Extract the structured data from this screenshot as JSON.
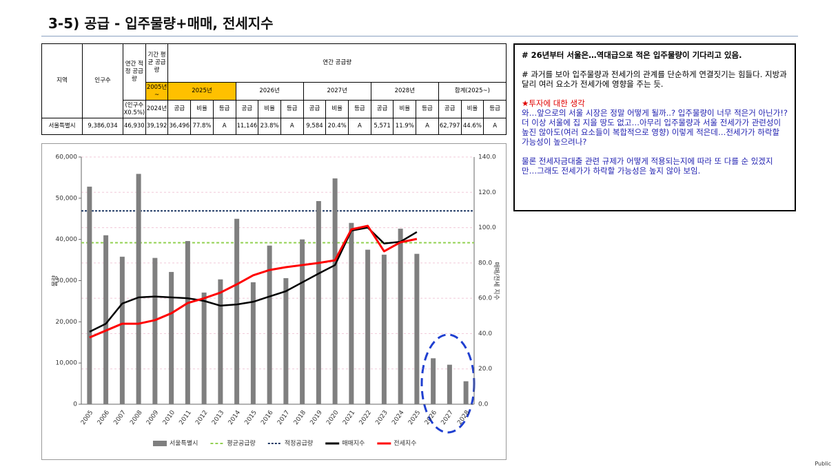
{
  "title": "3-5) 공급 - 입주물량+매매, 전세지수",
  "table": {
    "header": [
      [
        "지역",
        "인구수",
        "연간 적정 공급량",
        "기간 평균 공급량",
        "연간 공급량"
      ],
      [
        "2005년~",
        "2025년",
        "2026년",
        "2027년",
        "2028년",
        "합계(2025~)"
      ],
      [
        "(인구수 X0.5%)",
        "2024년",
        "공급",
        "비율",
        "등급",
        "공급",
        "비율",
        "등급",
        "공급",
        "비율",
        "등급",
        "공급",
        "비율",
        "등급",
        "공급",
        "비율",
        "등급"
      ]
    ],
    "rows": [
      [
        "서울특별시",
        "9,386,034",
        "46,930",
        "39,192",
        "36,496",
        "77.8%",
        "A",
        "11,146",
        "23.8%",
        "A",
        "9,584",
        "20.4%",
        "A",
        "5,571",
        "11.9%",
        "A",
        "62,797",
        "44.6%",
        "A"
      ]
    ]
  },
  "chart_data": {
    "type": "bar_line",
    "categories": [
      "2005",
      "2006",
      "2007",
      "2008",
      "2009",
      "2010",
      "2011",
      "2012",
      "2013",
      "2014",
      "2015",
      "2016",
      "2017",
      "2018",
      "2019",
      "2020",
      "2021",
      "2022",
      "2023",
      "2024",
      "2025",
      "2026",
      "2027",
      "2028"
    ],
    "y_label": "물량",
    "y2_label": "매매/전세 지수",
    "ylim": [
      0,
      60000
    ],
    "yticks": [
      {
        "value": 0,
        "label": "0"
      },
      {
        "value": 10000,
        "label": "10,000"
      },
      {
        "value": 20000,
        "label": "20,000"
      },
      {
        "value": 30000,
        "label": "30,000"
      },
      {
        "value": 40000,
        "label": "40,000"
      },
      {
        "value": 50000,
        "label": "50,000"
      },
      {
        "value": 60000,
        "label": "60,000"
      }
    ],
    "y2lim": [
      0,
      140
    ],
    "y2ticks": [
      {
        "value": 0,
        "label": "0.0"
      },
      {
        "value": 20,
        "label": "20.0"
      },
      {
        "value": 40,
        "label": "40.0"
      },
      {
        "value": 60,
        "label": "60.0"
      },
      {
        "value": 80,
        "label": "80.0"
      },
      {
        "value": 100,
        "label": "100.0"
      },
      {
        "value": 120,
        "label": "120.0"
      },
      {
        "value": 140,
        "label": "140.0"
      }
    ],
    "grid": true,
    "series": [
      {
        "name": "서울특별시",
        "type": "bar",
        "color": "#7f7f7f",
        "values": [
          52800,
          41000,
          35800,
          55900,
          35500,
          32100,
          39600,
          27100,
          30300,
          45000,
          29600,
          38500,
          30600,
          40000,
          49300,
          54800,
          44000,
          37500,
          36300,
          42600,
          36496,
          11146,
          9584,
          5571
        ]
      },
      {
        "name": "매매지수",
        "type": "line",
        "axis": "y2",
        "color": "#000000",
        "values": [
          41,
          45.6,
          57,
          60.5,
          61,
          60.5,
          60,
          58.5,
          55.8,
          56.5,
          58,
          61,
          64,
          69,
          74,
          78.8,
          98.3,
          100,
          91,
          92,
          97.5,
          null,
          null,
          null
        ]
      },
      {
        "name": "전세지수",
        "type": "line",
        "axis": "y2",
        "color": "#ff0000",
        "values": [
          37.8,
          41.7,
          45.6,
          45.6,
          47.6,
          51.5,
          57.3,
          60,
          63.2,
          67.9,
          73,
          76,
          77.6,
          78.8,
          80,
          81.5,
          99,
          101,
          86.6,
          91.7,
          93.6,
          null,
          null,
          null
        ]
      }
    ],
    "reference_lines": [
      {
        "name": "평균공급량",
        "color": "#92d050",
        "value": 39192
      },
      {
        "name": "적정공급량",
        "color": "#1f3864",
        "value": 46930
      }
    ]
  },
  "notes": [
    "# 26년부터 서울은…역대급으로 적은 입주물량이 기다리고 있음.",
    "# 과거를 보아 입주물량과 전세가의 관계를 단순하게 연결짓기는 힘들다. 지방과 달리 여러 요소가 전세가에 영향을 주는 듯.",
    "★투자에 대한 생각",
    "와…앞으로의 서울 시장은 정말 어떻게 될까..? 입주물량이 너무 적은거 아닌가!? 더 이상 서울에 집 지을 땅도 없고…아무리 입주물량과 서울 전세가가 관련성이 높진 않아도(여러 요소들이 복합적으로 영향) 이렇게 적은데…전세가가 하락할 가능성이 높으려나?",
    "물론 전세자금대출 관련 규제가 어떻게 적용되는지에 따라 또 다를 순 있겠지만…그래도 전세가가 하락할 가능성은 높지 않아 보임."
  ],
  "footer": "Public"
}
